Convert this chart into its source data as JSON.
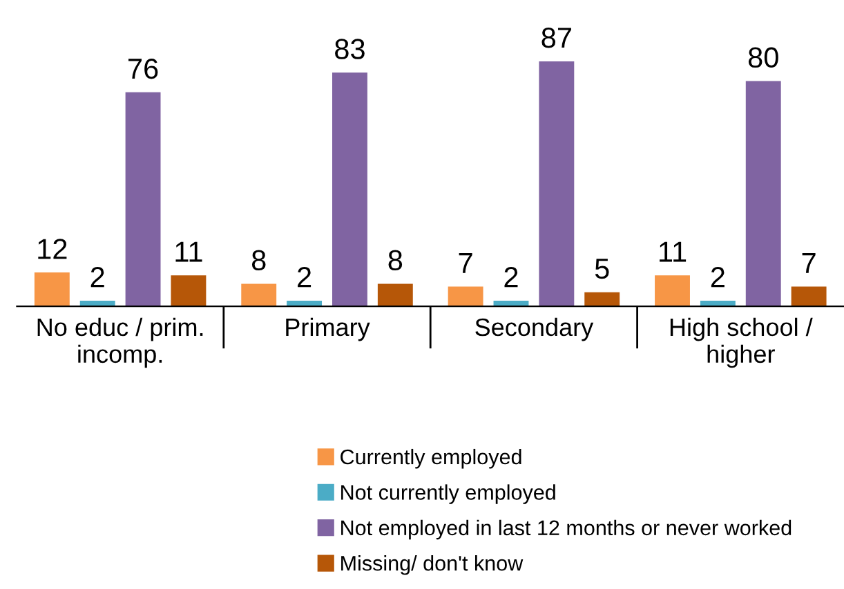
{
  "chart_data": {
    "type": "bar",
    "categories": [
      "No educ / prim.\nincomp.",
      "Primary",
      "Secondary",
      "High school /\nhigher"
    ],
    "series": [
      {
        "name": "Currently employed",
        "color": "#f79646",
        "values": [
          12,
          8,
          7,
          11
        ]
      },
      {
        "name": "Not currently employed",
        "color": "#4bacc6",
        "values": [
          2,
          2,
          2,
          2
        ]
      },
      {
        "name": "Not employed in last 12 months or never worked",
        "color": "#8064a2",
        "values": [
          76,
          83,
          87,
          80
        ]
      },
      {
        "name": "Missing/ don't know",
        "color": "#b65708",
        "values": [
          11,
          8,
          5,
          7
        ]
      }
    ],
    "data_labels": true,
    "legend": "bottom",
    "grid": false
  }
}
